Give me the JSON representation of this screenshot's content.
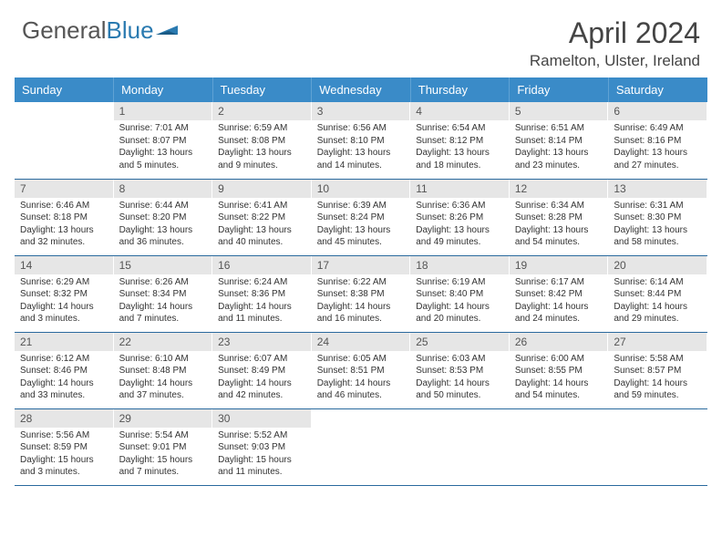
{
  "logo": {
    "text1": "General",
    "text2": "Blue"
  },
  "title": "April 2024",
  "location": "Ramelton, Ulster, Ireland",
  "colors": {
    "header_bg": "#3a8bc8",
    "header_text": "#ffffff",
    "daynum_bg": "#e6e6e6",
    "row_border": "#2a6a9e",
    "logo_gray": "#555555",
    "logo_blue": "#2a7ab0"
  },
  "typography": {
    "title_fontsize": 32,
    "location_fontsize": 17,
    "weekday_fontsize": 13,
    "body_fontsize": 10
  },
  "weekdays": [
    "Sunday",
    "Monday",
    "Tuesday",
    "Wednesday",
    "Thursday",
    "Friday",
    "Saturday"
  ],
  "weeks": [
    [
      {
        "num": "",
        "lines": []
      },
      {
        "num": "1",
        "lines": [
          "Sunrise: 7:01 AM",
          "Sunset: 8:07 PM",
          "Daylight: 13 hours",
          "and 5 minutes."
        ]
      },
      {
        "num": "2",
        "lines": [
          "Sunrise: 6:59 AM",
          "Sunset: 8:08 PM",
          "Daylight: 13 hours",
          "and 9 minutes."
        ]
      },
      {
        "num": "3",
        "lines": [
          "Sunrise: 6:56 AM",
          "Sunset: 8:10 PM",
          "Daylight: 13 hours",
          "and 14 minutes."
        ]
      },
      {
        "num": "4",
        "lines": [
          "Sunrise: 6:54 AM",
          "Sunset: 8:12 PM",
          "Daylight: 13 hours",
          "and 18 minutes."
        ]
      },
      {
        "num": "5",
        "lines": [
          "Sunrise: 6:51 AM",
          "Sunset: 8:14 PM",
          "Daylight: 13 hours",
          "and 23 minutes."
        ]
      },
      {
        "num": "6",
        "lines": [
          "Sunrise: 6:49 AM",
          "Sunset: 8:16 PM",
          "Daylight: 13 hours",
          "and 27 minutes."
        ]
      }
    ],
    [
      {
        "num": "7",
        "lines": [
          "Sunrise: 6:46 AM",
          "Sunset: 8:18 PM",
          "Daylight: 13 hours",
          "and 32 minutes."
        ]
      },
      {
        "num": "8",
        "lines": [
          "Sunrise: 6:44 AM",
          "Sunset: 8:20 PM",
          "Daylight: 13 hours",
          "and 36 minutes."
        ]
      },
      {
        "num": "9",
        "lines": [
          "Sunrise: 6:41 AM",
          "Sunset: 8:22 PM",
          "Daylight: 13 hours",
          "and 40 minutes."
        ]
      },
      {
        "num": "10",
        "lines": [
          "Sunrise: 6:39 AM",
          "Sunset: 8:24 PM",
          "Daylight: 13 hours",
          "and 45 minutes."
        ]
      },
      {
        "num": "11",
        "lines": [
          "Sunrise: 6:36 AM",
          "Sunset: 8:26 PM",
          "Daylight: 13 hours",
          "and 49 minutes."
        ]
      },
      {
        "num": "12",
        "lines": [
          "Sunrise: 6:34 AM",
          "Sunset: 8:28 PM",
          "Daylight: 13 hours",
          "and 54 minutes."
        ]
      },
      {
        "num": "13",
        "lines": [
          "Sunrise: 6:31 AM",
          "Sunset: 8:30 PM",
          "Daylight: 13 hours",
          "and 58 minutes."
        ]
      }
    ],
    [
      {
        "num": "14",
        "lines": [
          "Sunrise: 6:29 AM",
          "Sunset: 8:32 PM",
          "Daylight: 14 hours",
          "and 3 minutes."
        ]
      },
      {
        "num": "15",
        "lines": [
          "Sunrise: 6:26 AM",
          "Sunset: 8:34 PM",
          "Daylight: 14 hours",
          "and 7 minutes."
        ]
      },
      {
        "num": "16",
        "lines": [
          "Sunrise: 6:24 AM",
          "Sunset: 8:36 PM",
          "Daylight: 14 hours",
          "and 11 minutes."
        ]
      },
      {
        "num": "17",
        "lines": [
          "Sunrise: 6:22 AM",
          "Sunset: 8:38 PM",
          "Daylight: 14 hours",
          "and 16 minutes."
        ]
      },
      {
        "num": "18",
        "lines": [
          "Sunrise: 6:19 AM",
          "Sunset: 8:40 PM",
          "Daylight: 14 hours",
          "and 20 minutes."
        ]
      },
      {
        "num": "19",
        "lines": [
          "Sunrise: 6:17 AM",
          "Sunset: 8:42 PM",
          "Daylight: 14 hours",
          "and 24 minutes."
        ]
      },
      {
        "num": "20",
        "lines": [
          "Sunrise: 6:14 AM",
          "Sunset: 8:44 PM",
          "Daylight: 14 hours",
          "and 29 minutes."
        ]
      }
    ],
    [
      {
        "num": "21",
        "lines": [
          "Sunrise: 6:12 AM",
          "Sunset: 8:46 PM",
          "Daylight: 14 hours",
          "and 33 minutes."
        ]
      },
      {
        "num": "22",
        "lines": [
          "Sunrise: 6:10 AM",
          "Sunset: 8:48 PM",
          "Daylight: 14 hours",
          "and 37 minutes."
        ]
      },
      {
        "num": "23",
        "lines": [
          "Sunrise: 6:07 AM",
          "Sunset: 8:49 PM",
          "Daylight: 14 hours",
          "and 42 minutes."
        ]
      },
      {
        "num": "24",
        "lines": [
          "Sunrise: 6:05 AM",
          "Sunset: 8:51 PM",
          "Daylight: 14 hours",
          "and 46 minutes."
        ]
      },
      {
        "num": "25",
        "lines": [
          "Sunrise: 6:03 AM",
          "Sunset: 8:53 PM",
          "Daylight: 14 hours",
          "and 50 minutes."
        ]
      },
      {
        "num": "26",
        "lines": [
          "Sunrise: 6:00 AM",
          "Sunset: 8:55 PM",
          "Daylight: 14 hours",
          "and 54 minutes."
        ]
      },
      {
        "num": "27",
        "lines": [
          "Sunrise: 5:58 AM",
          "Sunset: 8:57 PM",
          "Daylight: 14 hours",
          "and 59 minutes."
        ]
      }
    ],
    [
      {
        "num": "28",
        "lines": [
          "Sunrise: 5:56 AM",
          "Sunset: 8:59 PM",
          "Daylight: 15 hours",
          "and 3 minutes."
        ]
      },
      {
        "num": "29",
        "lines": [
          "Sunrise: 5:54 AM",
          "Sunset: 9:01 PM",
          "Daylight: 15 hours",
          "and 7 minutes."
        ]
      },
      {
        "num": "30",
        "lines": [
          "Sunrise: 5:52 AM",
          "Sunset: 9:03 PM",
          "Daylight: 15 hours",
          "and 11 minutes."
        ]
      },
      {
        "num": "",
        "lines": []
      },
      {
        "num": "",
        "lines": []
      },
      {
        "num": "",
        "lines": []
      },
      {
        "num": "",
        "lines": []
      }
    ]
  ]
}
